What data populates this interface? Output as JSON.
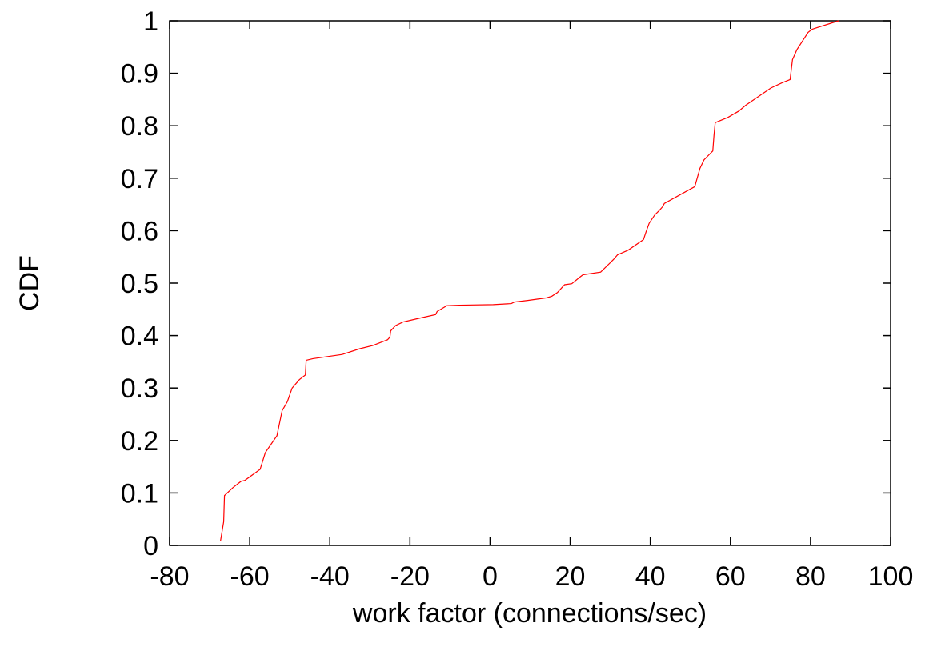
{
  "chart_data": {
    "type": "line",
    "title": "",
    "xlabel": "work factor (connections/sec)",
    "ylabel": "CDF",
    "xlim": [
      -80,
      100
    ],
    "ylim": [
      0,
      1
    ],
    "xticks": [
      -80,
      -60,
      -40,
      -20,
      0,
      20,
      40,
      60,
      80,
      100
    ],
    "yticks": [
      0,
      0.1,
      0.2,
      0.3,
      0.4,
      0.5,
      0.6,
      0.7,
      0.8,
      0.9,
      1
    ],
    "ytick_labels": [
      "0",
      "0.1",
      "0.2",
      "0.3",
      "0.4",
      "0.5",
      "0.6",
      "0.7",
      "0.8",
      "0.9",
      "1"
    ],
    "grid": false,
    "legend": "none",
    "series": [
      {
        "color": "#ff0000",
        "x": [
          -67.3,
          -66.5,
          -66.3,
          -64.2,
          -62.2,
          -61.2,
          -57.4,
          -56.1,
          -53.2,
          -52.5,
          -51.9,
          -50.6,
          -49.4,
          -47.6,
          -46.1,
          -45.9,
          -44.2,
          -36.9,
          -32.5,
          -29.3,
          -25.6,
          -25.0,
          -24.8,
          -23.6,
          -21.7,
          -18.3,
          -13.6,
          -13.2,
          -12.1,
          -10.8,
          -7.7,
          0.8,
          5.3,
          6.1,
          9.4,
          14.1,
          15.4,
          16.8,
          18.6,
          20.4,
          22.5,
          23.2,
          27.6,
          30.8,
          31.8,
          34.5,
          38.3,
          38.9,
          39.7,
          41.1,
          42.3,
          43.1,
          43.5,
          51.1,
          52.4,
          53.4,
          55.6,
          55.9,
          56.2,
          59.4,
          62.1,
          63.8,
          70.1,
          72.9,
          74.9,
          75.5,
          76.6,
          79.4,
          80.4,
          87.0
        ]
      }
    ]
  },
  "chart_data_y": [
    0.008,
    0.045,
    0.095,
    0.11,
    0.122,
    0.124,
    0.145,
    0.177,
    0.209,
    0.235,
    0.257,
    0.274,
    0.3,
    0.316,
    0.325,
    0.353,
    0.356,
    0.364,
    0.375,
    0.381,
    0.392,
    0.397,
    0.409,
    0.419,
    0.426,
    0.432,
    0.44,
    0.446,
    0.451,
    0.457,
    0.458,
    0.459,
    0.461,
    0.464,
    0.467,
    0.472,
    0.475,
    0.482,
    0.497,
    0.499,
    0.512,
    0.516,
    0.521,
    0.545,
    0.554,
    0.563,
    0.583,
    0.597,
    0.614,
    0.63,
    0.639,
    0.646,
    0.652,
    0.684,
    0.719,
    0.735,
    0.752,
    0.782,
    0.806,
    0.816,
    0.828,
    0.839,
    0.872,
    0.882,
    0.888,
    0.926,
    0.945,
    0.978,
    0.984,
    1.0
  ]
}
